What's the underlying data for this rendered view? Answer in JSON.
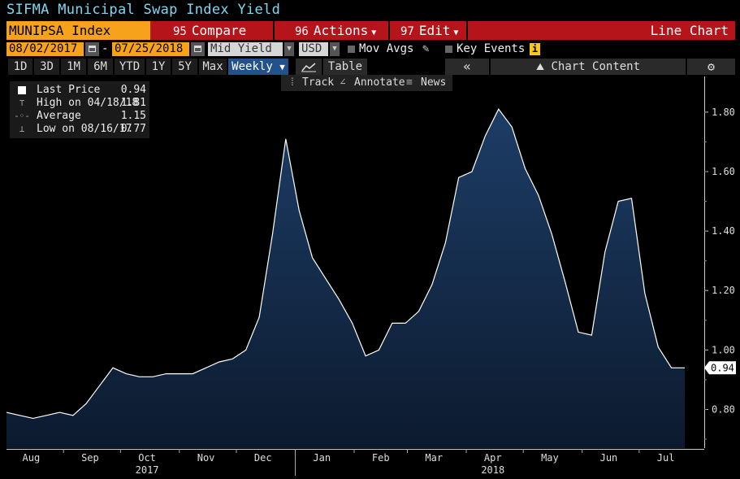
{
  "header": {
    "title": "SIFMA Municipal Swap Index Yield"
  },
  "toolbar": {
    "ticker": "MUNIPSA Index",
    "compare_num": "95",
    "compare": "Compare",
    "actions_num": "96",
    "actions": "Actions",
    "edit_num": "97",
    "edit": "Edit",
    "chart_type": "Line Chart"
  },
  "params": {
    "start_date": "08/02/2017",
    "dash": "-",
    "end_date": "07/25/2018",
    "field": "Mid Yield",
    "currency": "USD",
    "mov_avgs": "Mov Avgs",
    "key_events": "Key Events",
    "info": "i"
  },
  "ranges": [
    "1D",
    "3D",
    "1M",
    "6M",
    "YTD",
    "1Y",
    "5Y",
    "Max"
  ],
  "frequency": "Weekly",
  "view": {
    "table": "Table",
    "collapse": "«",
    "chart_content": "Chart Content"
  },
  "tools": {
    "track": "Track",
    "annotate": "Annotate",
    "news": "News"
  },
  "legend": [
    {
      "name": "Last Price",
      "value": "0.94"
    },
    {
      "name": "High on 04/18/18",
      "value": "1.81"
    },
    {
      "name": "Average",
      "value": "1.15"
    },
    {
      "name": "Low on 08/16/17",
      "value": "0.77"
    }
  ],
  "colors": {
    "line": "#ffffff",
    "fill_top": "#1d3d66",
    "fill_bottom": "#0c1a2e",
    "accent": "#f7a21b",
    "bar": "#b5141b"
  },
  "chart_data": {
    "type": "area",
    "x": [
      "2017-08-02",
      "2017-08-09",
      "2017-08-16",
      "2017-08-23",
      "2017-08-30",
      "2017-09-06",
      "2017-09-13",
      "2017-09-20",
      "2017-09-27",
      "2017-10-04",
      "2017-10-11",
      "2017-10-18",
      "2017-10-25",
      "2017-11-01",
      "2017-11-08",
      "2017-11-15",
      "2017-11-22",
      "2017-11-29",
      "2017-12-06",
      "2017-12-13",
      "2017-12-20",
      "2017-12-27",
      "2018-01-03",
      "2018-01-10",
      "2018-01-17",
      "2018-01-24",
      "2018-01-31",
      "2018-02-07",
      "2018-02-14",
      "2018-02-21",
      "2018-02-28",
      "2018-03-07",
      "2018-03-14",
      "2018-03-21",
      "2018-03-28",
      "2018-04-04",
      "2018-04-11",
      "2018-04-18",
      "2018-04-25",
      "2018-05-02",
      "2018-05-09",
      "2018-05-16",
      "2018-05-23",
      "2018-05-30",
      "2018-06-06",
      "2018-06-13",
      "2018-06-20",
      "2018-06-27",
      "2018-07-04",
      "2018-07-11",
      "2018-07-18",
      "2018-07-25"
    ],
    "values": [
      0.79,
      0.78,
      0.77,
      0.78,
      0.79,
      0.78,
      0.82,
      0.88,
      0.94,
      0.92,
      0.91,
      0.91,
      0.92,
      0.92,
      0.92,
      0.94,
      0.96,
      0.97,
      1.0,
      1.11,
      1.39,
      1.71,
      1.47,
      1.31,
      1.24,
      1.17,
      1.09,
      0.98,
      1.0,
      1.09,
      1.09,
      1.13,
      1.22,
      1.36,
      1.58,
      1.6,
      1.72,
      1.81,
      1.75,
      1.61,
      1.52,
      1.39,
      1.23,
      1.06,
      1.05,
      1.33,
      1.5,
      1.51,
      1.19,
      1.01,
      0.94,
      0.94
    ],
    "y_ticks": [
      "0.80",
      "1.00",
      "1.20",
      "1.40",
      "1.60",
      "1.80"
    ],
    "y_tick_values": [
      0.8,
      1.0,
      1.2,
      1.4,
      1.6,
      1.8
    ],
    "ylim": [
      0.67,
      1.92
    ],
    "x_ticks": [
      {
        "label": "Aug",
        "date": "2017-08-15"
      },
      {
        "label": "Sep",
        "date": "2017-09-15"
      },
      {
        "label": "Oct",
        "date": "2017-10-15"
      },
      {
        "label": "Nov",
        "date": "2017-11-15"
      },
      {
        "label": "Dec",
        "date": "2017-12-15"
      },
      {
        "label": "Jan",
        "date": "2018-01-15"
      },
      {
        "label": "Feb",
        "date": "2018-02-15"
      },
      {
        "label": "Mar",
        "date": "2018-03-15"
      },
      {
        "label": "Apr",
        "date": "2018-04-15"
      },
      {
        "label": "May",
        "date": "2018-05-15"
      },
      {
        "label": "Jun",
        "date": "2018-06-15"
      },
      {
        "label": "Jul",
        "date": "2018-07-15"
      }
    ],
    "x_years": [
      {
        "label": "2017",
        "date": "2017-10-15"
      },
      {
        "label": "2018",
        "date": "2018-04-15"
      }
    ],
    "last_value_label": "0.94",
    "grid": false
  }
}
